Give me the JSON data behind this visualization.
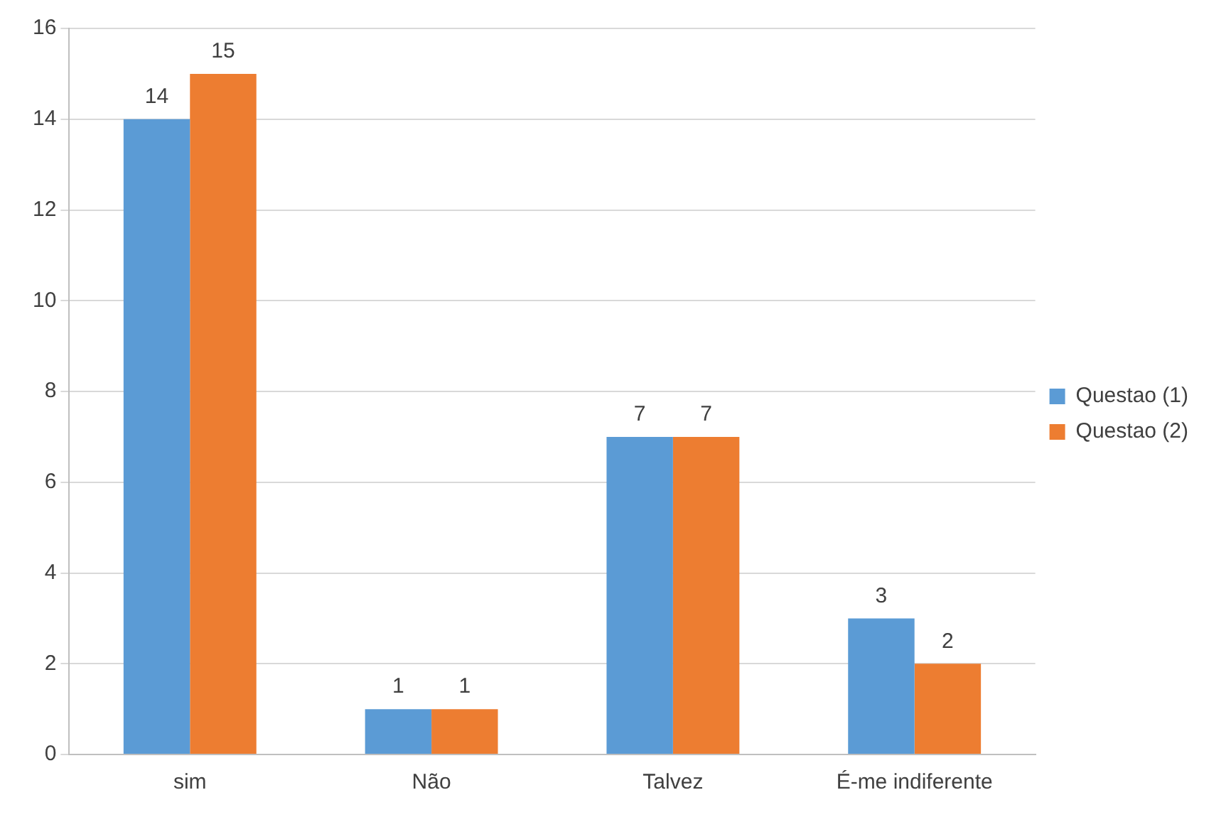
{
  "chart_data": {
    "type": "bar",
    "categories": [
      "sim",
      "Não",
      "Talvez",
      "É-me indiferente"
    ],
    "series": [
      {
        "name": "Questao (1)",
        "color": "#5b9bd5",
        "values": [
          14,
          1,
          7,
          3
        ]
      },
      {
        "name": "Questao (2)",
        "color": "#ed7d31",
        "values": [
          15,
          1,
          7,
          2
        ]
      }
    ],
    "ylim": [
      0,
      16
    ],
    "yticks": [
      0,
      2,
      4,
      6,
      8,
      10,
      12,
      14,
      16
    ],
    "grid": "y",
    "legend": "right",
    "data_labels": true
  }
}
